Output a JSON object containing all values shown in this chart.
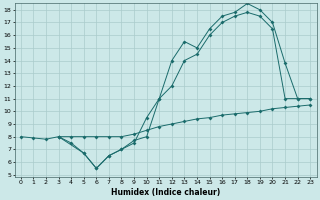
{
  "xlabel": "Humidex (Indice chaleur)",
  "bg_color": "#cce8e8",
  "grid_color": "#aacccc",
  "line_color": "#1a6b6b",
  "xlim": [
    -0.5,
    23.5
  ],
  "ylim": [
    4.8,
    18.5
  ],
  "xticks": [
    0,
    1,
    2,
    3,
    4,
    5,
    6,
    7,
    8,
    9,
    10,
    11,
    12,
    13,
    14,
    15,
    16,
    17,
    18,
    19,
    20,
    21,
    22,
    23
  ],
  "yticks": [
    5,
    6,
    7,
    8,
    9,
    10,
    11,
    12,
    13,
    14,
    15,
    16,
    17,
    18
  ],
  "line1_x": [
    0,
    1,
    2,
    3,
    4,
    5,
    6,
    7,
    8,
    9,
    10,
    11,
    12,
    13,
    14,
    15,
    16,
    17,
    18,
    19,
    20,
    21,
    22,
    23
  ],
  "line1_y": [
    8,
    7.9,
    7.8,
    8,
    8,
    8,
    8,
    8,
    8,
    8.2,
    8.5,
    8.8,
    9,
    9.2,
    9.4,
    9.5,
    9.7,
    9.8,
    9.9,
    10,
    10.2,
    10.3,
    10.4,
    10.5
  ],
  "line2_x": [
    3,
    4,
    5,
    6,
    7,
    8,
    9,
    10,
    11,
    12,
    13,
    14,
    15,
    16,
    17,
    18,
    19,
    20,
    21,
    22,
    23
  ],
  "line2_y": [
    8,
    7.5,
    6.7,
    5.5,
    6.5,
    7,
    7.5,
    9.5,
    11,
    12,
    14,
    14.5,
    16,
    17,
    17.5,
    17.8,
    17.5,
    16.5,
    11,
    11,
    11
  ],
  "line3_x": [
    3,
    5,
    6,
    7,
    8,
    9,
    10,
    11,
    12,
    13,
    14,
    15,
    16,
    17,
    18,
    19,
    20,
    21,
    22,
    23
  ],
  "line3_y": [
    8,
    6.7,
    5.5,
    6.5,
    7,
    7.7,
    8,
    11,
    14,
    15.5,
    15,
    16.5,
    17.5,
    17.8,
    18.5,
    18,
    17,
    13.8,
    11,
    11
  ]
}
